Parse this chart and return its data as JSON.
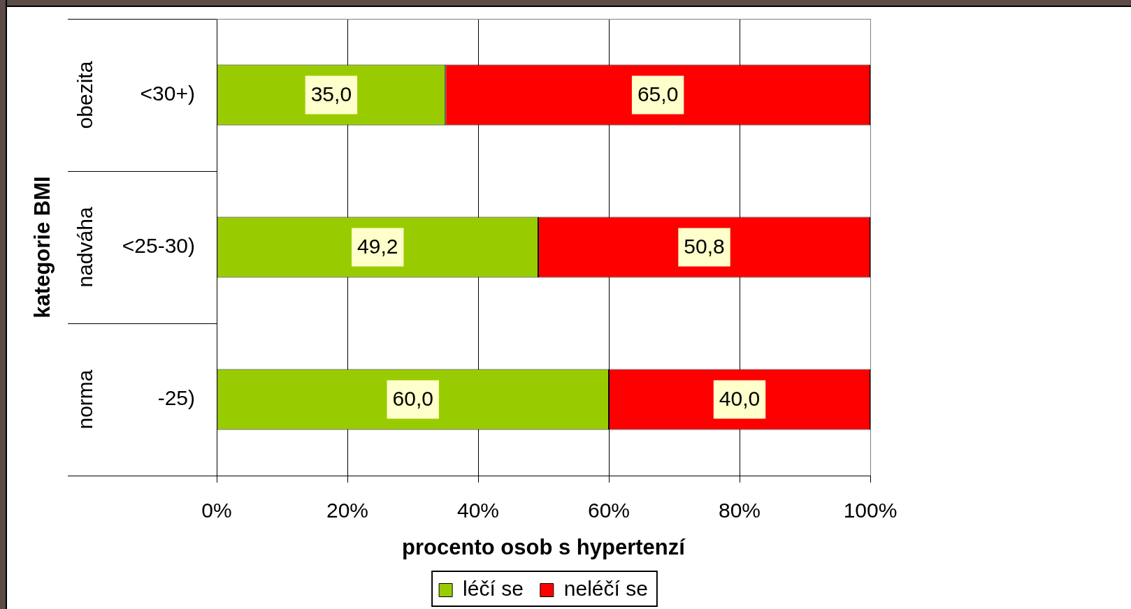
{
  "chart_data": {
    "type": "bar",
    "orientation": "horizontal",
    "stacked": true,
    "xlabel": "procento osob s hypertenzí",
    "ylabel": "kategorie BMI",
    "categories": [
      "<30+)",
      "<25-30)",
      "-25)"
    ],
    "annotations": [
      "obezita",
      "nadváha",
      "norma"
    ],
    "series": [
      {
        "name": "léčí se",
        "color": "#99cc00",
        "values": [
          35.0,
          49.2,
          60.0
        ],
        "value_labels": [
          "35,0",
          "49,2",
          "60,0"
        ]
      },
      {
        "name": "neléčí se",
        "color": "#ff0000",
        "values": [
          65.0,
          50.8,
          40.0
        ],
        "value_labels": [
          "65,0",
          "50,8",
          "40,0"
        ]
      }
    ],
    "xlim": [
      0,
      100
    ],
    "xticks": [
      {
        "value": 0,
        "label": "0%"
      },
      {
        "value": 20,
        "label": "20%"
      },
      {
        "value": 40,
        "label": "40%"
      },
      {
        "value": 60,
        "label": "60%"
      },
      {
        "value": 80,
        "label": "80%"
      },
      {
        "value": 100,
        "label": "100%"
      }
    ],
    "grid": "x",
    "legend": "bottom"
  }
}
